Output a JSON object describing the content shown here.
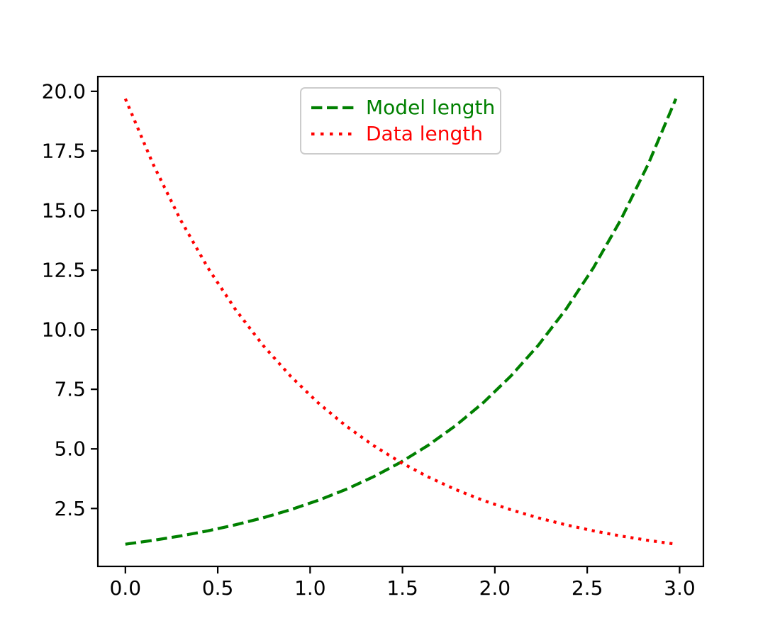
{
  "chart_data": {
    "type": "line",
    "title": "",
    "xlabel": "",
    "ylabel": "",
    "grid": false,
    "background": "#ffffff",
    "axis_color": "#000000",
    "tick_label_color": "#000000",
    "legend": {
      "position": "upper center",
      "border_color": "#cccccc",
      "background": "#ffffff"
    },
    "axes": {
      "xlim": [
        -0.149,
        3.129
      ],
      "ylim": [
        0.07,
        20.62
      ],
      "xtick_values": [
        0.0,
        0.5,
        1.0,
        1.5,
        2.0,
        2.5,
        3.0
      ],
      "xtick_labels": [
        "0.0",
        "0.5",
        "1.0",
        "1.5",
        "2.0",
        "2.5",
        "3.0"
      ],
      "ytick_values": [
        2.5,
        5.0,
        7.5,
        10.0,
        12.5,
        15.0,
        17.5,
        20.0
      ],
      "ytick_labels": [
        "2.5",
        "5.0",
        "7.5",
        "10.0",
        "12.5",
        "15.0",
        "17.5",
        "20.0"
      ]
    },
    "x": [
      0.0,
      0.149,
      0.298,
      0.447,
      0.596,
      0.745,
      0.894,
      1.043,
      1.192,
      1.341,
      1.49,
      1.639,
      1.788,
      1.937,
      2.086,
      2.235,
      2.384,
      2.533,
      2.682,
      2.831,
      2.98
    ],
    "series": [
      {
        "name": "Model length",
        "color": "#008000",
        "linestyle": "dashed",
        "values": [
          1.0,
          1.161,
          1.347,
          1.564,
          1.815,
          2.107,
          2.445,
          2.838,
          3.294,
          3.823,
          4.437,
          5.15,
          5.977,
          6.937,
          8.052,
          9.346,
          10.848,
          12.591,
          14.614,
          16.962,
          19.688
        ]
      },
      {
        "name": "Data length",
        "color": "#ff0000",
        "linestyle": "dotted",
        "values": [
          19.688,
          16.962,
          14.614,
          12.591,
          10.848,
          9.346,
          8.052,
          6.937,
          5.977,
          5.15,
          4.437,
          3.823,
          3.294,
          2.838,
          2.445,
          2.107,
          1.815,
          1.564,
          1.347,
          1.161,
          1.0
        ]
      }
    ]
  }
}
